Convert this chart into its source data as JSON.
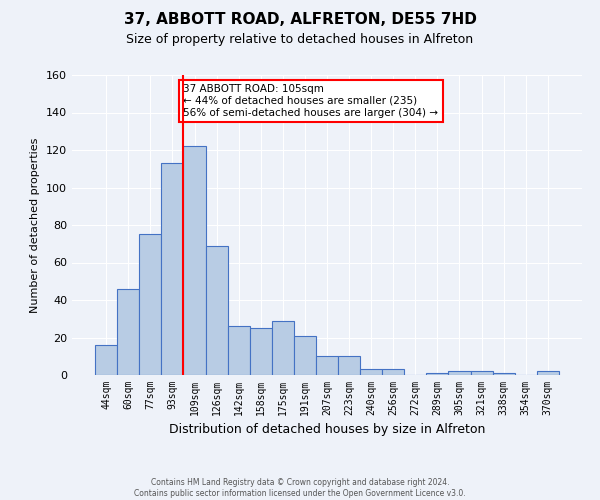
{
  "title1": "37, ABBOTT ROAD, ALFRETON, DE55 7HD",
  "title2": "Size of property relative to detached houses in Alfreton",
  "xlabel": "Distribution of detached houses by size in Alfreton",
  "ylabel": "Number of detached properties",
  "bin_labels": [
    "44sqm",
    "60sqm",
    "77sqm",
    "93sqm",
    "109sqm",
    "126sqm",
    "142sqm",
    "158sqm",
    "175sqm",
    "191sqm",
    "207sqm",
    "223sqm",
    "240sqm",
    "256sqm",
    "272sqm",
    "289sqm",
    "305sqm",
    "321sqm",
    "338sqm",
    "354sqm",
    "370sqm"
  ],
  "bar_values": [
    16,
    46,
    75,
    113,
    122,
    69,
    26,
    25,
    29,
    21,
    10,
    10,
    3,
    3,
    0,
    1,
    2,
    2,
    1,
    0,
    2
  ],
  "bar_color": "#b8cce4",
  "bar_edge_color": "#4472c4",
  "background_color": "#eef2f9",
  "grid_color": "#ffffff",
  "vline_x_index": 4,
  "vline_color": "red",
  "annotation_box_text": "37 ABBOTT ROAD: 105sqm\n← 44% of detached houses are smaller (235)\n56% of semi-detached houses are larger (304) →",
  "annotation_box_color": "white",
  "annotation_box_edge_color": "red",
  "ylim": [
    0,
    160
  ],
  "yticks": [
    0,
    20,
    40,
    60,
    80,
    100,
    120,
    140,
    160
  ],
  "footer": "Contains HM Land Registry data © Crown copyright and database right 2024.\nContains public sector information licensed under the Open Government Licence v3.0."
}
